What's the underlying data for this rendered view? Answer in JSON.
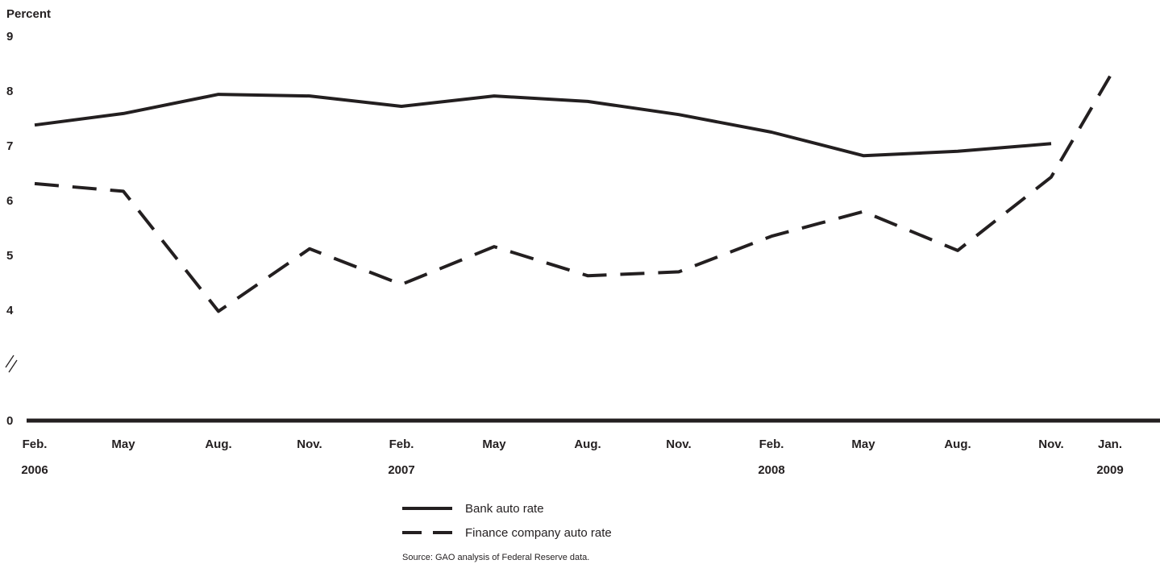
{
  "chart_data": {
    "type": "line",
    "ylabel": "Percent",
    "xlabel": "",
    "ylim": [
      0,
      9
    ],
    "y_axis_break": "between 0 and 4",
    "yticks": [
      0,
      4,
      5,
      6,
      7,
      8,
      9
    ],
    "x_tick_labels": [
      {
        "month": "Feb.",
        "year": "2006"
      },
      {
        "month": "May",
        "year": ""
      },
      {
        "month": "Aug.",
        "year": ""
      },
      {
        "month": "Nov.",
        "year": ""
      },
      {
        "month": "Feb.",
        "year": "2007"
      },
      {
        "month": "May",
        "year": ""
      },
      {
        "month": "Aug.",
        "year": ""
      },
      {
        "month": "Nov.",
        "year": ""
      },
      {
        "month": "Feb.",
        "year": "2008"
      },
      {
        "month": "May",
        "year": ""
      },
      {
        "month": "Aug.",
        "year": ""
      },
      {
        "month": "Nov.",
        "year": ""
      },
      {
        "month": "Jan.",
        "year": "2009"
      }
    ],
    "x": [
      "2006-02",
      "2006-05",
      "2006-08",
      "2006-11",
      "2007-02",
      "2007-05",
      "2007-08",
      "2007-11",
      "2008-02",
      "2008-05",
      "2008-08",
      "2008-11",
      "2009-01"
    ],
    "series": [
      {
        "name": "Bank auto rate",
        "style": "solid",
        "color": "#231f20",
        "values": [
          7.38,
          7.59,
          7.94,
          7.91,
          7.72,
          7.91,
          7.81,
          7.57,
          7.25,
          6.82,
          6.9,
          7.04,
          null
        ]
      },
      {
        "name": "Finance company auto rate",
        "style": "dashed",
        "color": "#231f20",
        "values": [
          6.31,
          6.17,
          3.98,
          5.12,
          4.47,
          5.16,
          4.63,
          4.7,
          5.35,
          5.8,
          5.09,
          6.43,
          8.27
        ]
      }
    ],
    "legend": {
      "placement": "bottom-center"
    },
    "grid": false,
    "source": "Source: GAO analysis of Federal Reserve data."
  }
}
